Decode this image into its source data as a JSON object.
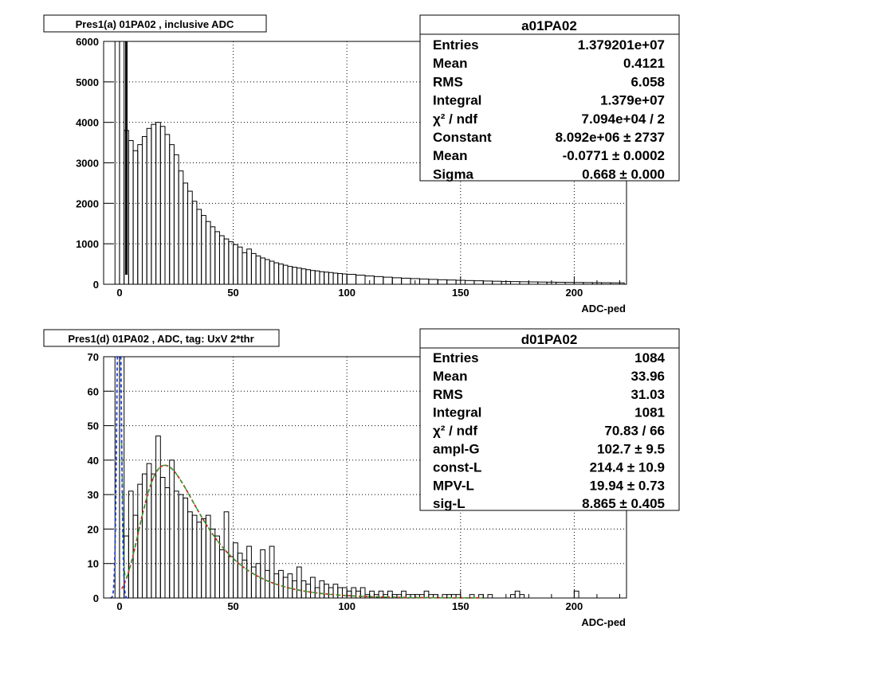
{
  "chart_data": [
    {
      "type": "histogram",
      "title": "Pres1(a) 01PA02 , inclusive ADC",
      "xlabel": "ADC-ped",
      "ylabel": "",
      "xlim": [
        -7,
        223
      ],
      "ylim": [
        0,
        6000
      ],
      "xticks": [
        "0",
        "50",
        "100",
        "150",
        "200"
      ],
      "yticks": [
        "0",
        "1000",
        "2000",
        "3000",
        "4000",
        "5000",
        "6000"
      ],
      "grid": true,
      "bin_width": 2,
      "threshold_marker_x": 3,
      "histogram": {
        "x": [
          -2,
          0,
          2,
          4,
          6,
          8,
          10,
          12,
          14,
          16,
          18,
          20,
          22,
          24,
          26,
          28,
          30,
          32,
          34,
          36,
          38,
          40,
          42,
          44,
          46,
          48,
          50,
          52,
          54,
          56,
          58,
          60,
          62,
          64,
          66,
          68,
          70,
          72,
          74,
          76,
          78,
          80,
          82,
          84,
          86,
          88,
          90,
          92,
          94,
          96,
          98,
          100,
          104,
          108,
          112,
          116,
          120,
          124,
          128,
          132,
          136,
          140,
          144,
          148,
          152,
          156,
          160,
          164,
          168,
          172,
          176,
          180,
          184,
          188,
          192,
          196,
          200,
          204,
          208,
          212,
          216,
          220
        ],
        "y": [
          6000,
          6000,
          3800,
          3550,
          3300,
          3450,
          3650,
          3850,
          3950,
          4000,
          3900,
          3700,
          3450,
          3200,
          2800,
          2500,
          2300,
          2050,
          1850,
          1700,
          1550,
          1420,
          1300,
          1200,
          1120,
          1050,
          980,
          920,
          780,
          870,
          760,
          700,
          650,
          610,
          570,
          530,
          500,
          470,
          440,
          420,
          400,
          380,
          360,
          340,
          330,
          310,
          300,
          290,
          275,
          265,
          255,
          245,
          225,
          205,
          190,
          175,
          160,
          150,
          140,
          130,
          120,
          112,
          105,
          98,
          92,
          86,
          80,
          75,
          70,
          66,
          62,
          58,
          55,
          52,
          49,
          46,
          44,
          42,
          40,
          38,
          36,
          34
        ]
      },
      "stats": {
        "name": "a01PA02",
        "rows": [
          {
            "label": "Entries",
            "value": "1.379201e+07"
          },
          {
            "label": "Mean",
            "value": "0.4121"
          },
          {
            "label": "RMS",
            "value": "6.058"
          },
          {
            "label": "Integral",
            "value": "1.379e+07"
          },
          {
            "label": "χ² / ndf",
            "value": "7.094e+04 / 2"
          },
          {
            "label": "Constant",
            "value": "8.092e+06 ± 2737"
          },
          {
            "label": "Mean",
            "value": "-0.0771 ± 0.0002"
          },
          {
            "label": "Sigma",
            "value": "0.668 ± 0.000"
          }
        ]
      }
    },
    {
      "type": "histogram",
      "title": "Pres1(d) 01PA02 , ADC, tag: UxV 2*thr",
      "xlabel": "ADC-ped",
      "ylabel": "",
      "xlim": [
        -7,
        223
      ],
      "ylim": [
        0,
        70
      ],
      "xticks": [
        "0",
        "50",
        "100",
        "150",
        "200"
      ],
      "yticks": [
        "0",
        "10",
        "20",
        "30",
        "40",
        "50",
        "60",
        "70"
      ],
      "grid": true,
      "bin_width": 2,
      "histogram": {
        "x": [
          -2,
          0,
          2,
          4,
          6,
          8,
          10,
          12,
          14,
          16,
          18,
          20,
          22,
          24,
          26,
          28,
          30,
          32,
          34,
          36,
          38,
          40,
          42,
          44,
          46,
          48,
          50,
          52,
          54,
          56,
          58,
          60,
          62,
          64,
          66,
          68,
          70,
          72,
          74,
          76,
          78,
          80,
          82,
          84,
          86,
          88,
          90,
          92,
          94,
          96,
          98,
          100,
          102,
          104,
          106,
          108,
          110,
          112,
          114,
          116,
          118,
          120,
          122,
          124,
          126,
          128,
          130,
          132,
          134,
          136,
          138,
          140,
          142,
          144,
          146,
          148,
          150,
          152,
          154,
          156,
          158,
          160,
          162,
          164,
          166,
          168,
          170,
          172,
          174,
          176,
          178,
          180,
          182,
          184,
          186,
          188,
          190,
          192,
          194,
          196,
          198,
          200,
          202,
          204,
          206,
          208,
          210,
          212,
          214,
          216,
          218,
          220
        ],
        "y": [
          70,
          70,
          18,
          31,
          24,
          33,
          36,
          39,
          36,
          47,
          35,
          32,
          40,
          31,
          30,
          29,
          25,
          24,
          22,
          23,
          24,
          20,
          18,
          14,
          25,
          12,
          16,
          13,
          11,
          15,
          9,
          10,
          14,
          8,
          15,
          7,
          8,
          6,
          7,
          5,
          9,
          5,
          4,
          6,
          3,
          5,
          4,
          3,
          4,
          3,
          3,
          2,
          3,
          2,
          3,
          1,
          2,
          1,
          2,
          1,
          2,
          1,
          1,
          2,
          1,
          1,
          1,
          1,
          2,
          1,
          1,
          0,
          1,
          1,
          1,
          1,
          0,
          0,
          1,
          0,
          1,
          0,
          1,
          0,
          0,
          0,
          0,
          1,
          2,
          1,
          0,
          0,
          0,
          0,
          0,
          0,
          0,
          0,
          0,
          0,
          0,
          2,
          0,
          0,
          0,
          0,
          0,
          0,
          0,
          0,
          0,
          0
        ]
      },
      "fits": {
        "total": {
          "color": "#2ca02c",
          "dash": "4,3"
        },
        "landau": {
          "color": "#d62728",
          "dash": "4,3"
        },
        "gauss": {
          "color": "#1f3fd1",
          "dash": "4,3"
        },
        "landau_mpv": 19.94,
        "landau_sigma": 8.865,
        "landau_norm": 214.4,
        "gauss_ampl": 102.7
      },
      "stats": {
        "name": "d01PA02",
        "rows": [
          {
            "label": "Entries",
            "value": "1084"
          },
          {
            "label": "Mean",
            "value": "33.96"
          },
          {
            "label": "RMS",
            "value": "31.03"
          },
          {
            "label": "Integral",
            "value": "1081"
          },
          {
            "label": "χ² / ndf",
            "value": "70.83 / 66"
          },
          {
            "label": "ampl-G",
            "value": "102.7 ± 9.5"
          },
          {
            "label": "const-L",
            "value": "214.4 ± 10.9"
          },
          {
            "label": "MPV-L",
            "value": "19.94 ± 0.73"
          },
          {
            "label": "sig-L",
            "value": "8.865 ± 0.405"
          }
        ]
      }
    }
  ]
}
